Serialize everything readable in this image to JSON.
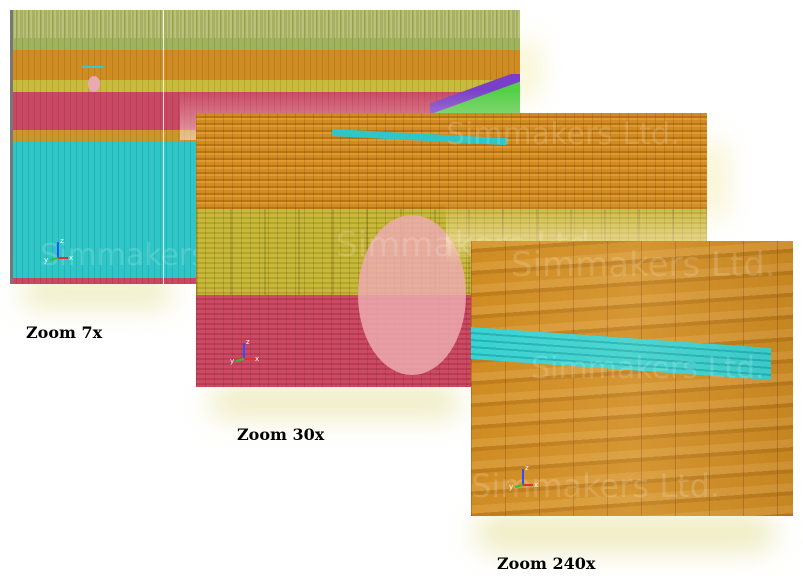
{
  "panels": [
    {
      "zoom_label": "Zoom 7x",
      "watermark": "Simmakers Ltd."
    },
    {
      "zoom_label": "Zoom 30x",
      "watermark": "Simmakers Ltd."
    },
    {
      "zoom_label": "Zoom 240x",
      "watermark": "Simmakers Ltd."
    }
  ],
  "axis_labels": {
    "x": "x",
    "y": "y",
    "z": "z"
  },
  "colors": {
    "orange_layer": "#d08c22",
    "yellow_layer": "#c7b93a",
    "red_layer": "#cc4a64",
    "cyan_layer": "#2ec6c6",
    "green_layer": "#a8b160",
    "pink_inclusion": "#ecaab0"
  }
}
